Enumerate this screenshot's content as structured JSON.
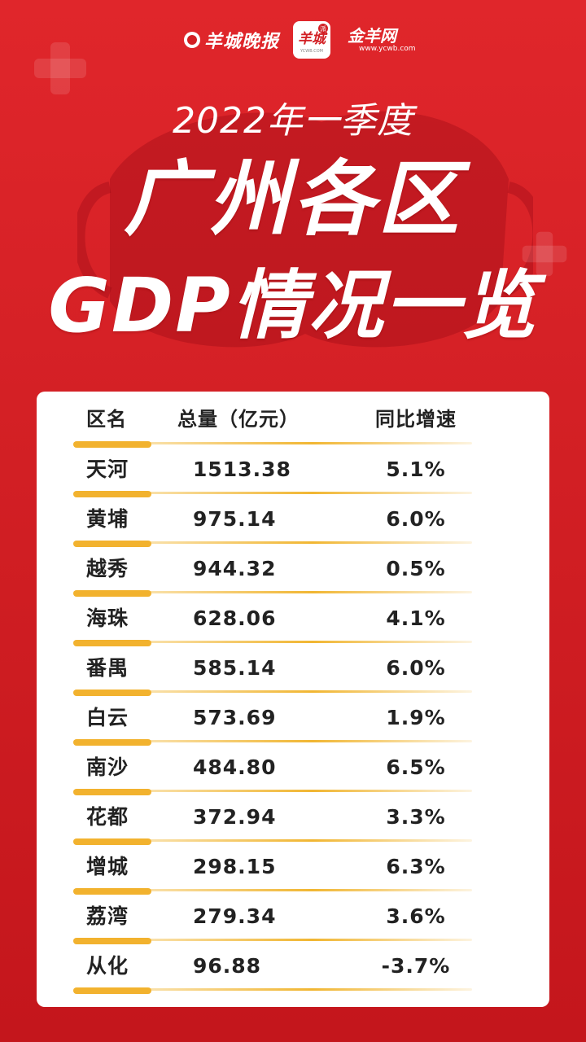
{
  "brand": {
    "newspaper": "羊城晚报",
    "app_logo": "羊城",
    "app_logo_badge": "派",
    "app_logo_sub": "YCWB.COM",
    "site_logo": "金羊网",
    "site_url": "www.ycwb.com"
  },
  "subtitle": "2022年一季度",
  "title_line1": "广州各区",
  "title_line2": "GDP情况一览",
  "table": {
    "headers": [
      "区名",
      "总量（亿元）",
      "同比增速"
    ],
    "rows": [
      {
        "district": "天河",
        "total": "1513.38",
        "growth": "5.1%"
      },
      {
        "district": "黄埔",
        "total": "975.14",
        "growth": "6.0%"
      },
      {
        "district": "越秀",
        "total": "944.32",
        "growth": "0.5%"
      },
      {
        "district": "海珠",
        "total": "628.06",
        "growth": "4.1%"
      },
      {
        "district": "番禺",
        "total": "585.14",
        "growth": "6.0%"
      },
      {
        "district": "白云",
        "total": "573.69",
        "growth": "1.9%"
      },
      {
        "district": "南沙",
        "total": "484.80",
        "growth": "6.5%"
      },
      {
        "district": "花都",
        "total": "372.94",
        "growth": "3.3%"
      },
      {
        "district": "增城",
        "total": "298.15",
        "growth": "6.3%"
      },
      {
        "district": "荔湾",
        "total": "279.34",
        "growth": "3.6%"
      },
      {
        "district": "从化",
        "total": "96.88",
        "growth": "-3.7%"
      }
    ]
  },
  "colors": {
    "background": "#d21f24",
    "accent": "#f2b22e",
    "text": "#222222",
    "card": "#ffffff"
  }
}
